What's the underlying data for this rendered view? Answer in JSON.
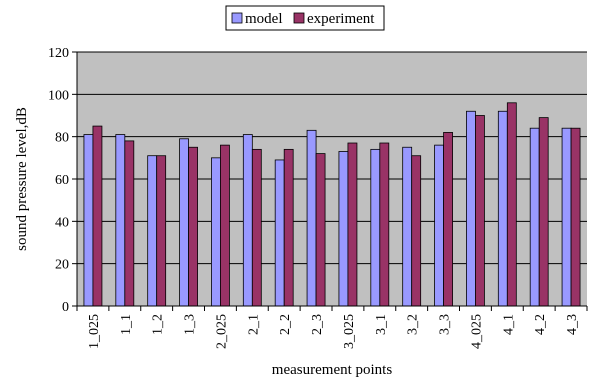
{
  "chart_data": {
    "type": "bar",
    "title": "",
    "xlabel": "measurement points",
    "ylabel": "sound pressure level,dB",
    "ylim": [
      0,
      120
    ],
    "yticks": [
      0,
      20,
      40,
      60,
      80,
      100,
      120
    ],
    "grid": true,
    "legend_position": "top",
    "categories": [
      "1_025",
      "1_1",
      "1_2",
      "1_3",
      "2_025",
      "2_1",
      "2_2",
      "2_3",
      "3_025",
      "3_1",
      "3_2",
      "3_3",
      "4_025",
      "4_1",
      "4_2",
      "4_3"
    ],
    "series": [
      {
        "name": "model",
        "color": "#9999ff",
        "values": [
          81,
          81,
          71,
          79,
          70,
          81,
          69,
          83,
          73,
          74,
          75,
          76,
          92,
          92,
          84,
          84
        ]
      },
      {
        "name": "experiment",
        "color": "#993366",
        "values": [
          85,
          78,
          71,
          75,
          76,
          74,
          74,
          72,
          77,
          77,
          71,
          82,
          90,
          96,
          89,
          84
        ]
      }
    ],
    "plot_background": "#c0c0c0"
  }
}
